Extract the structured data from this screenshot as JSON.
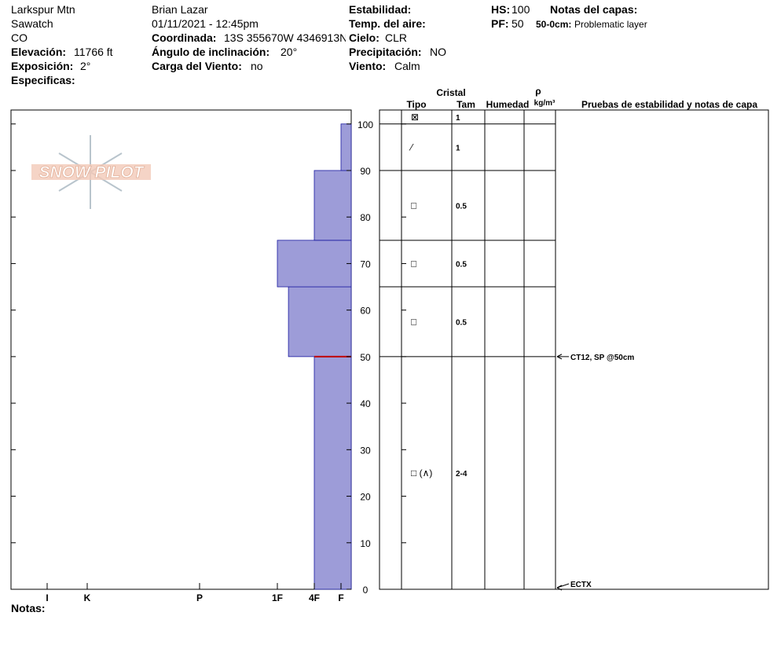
{
  "header": {
    "location": "Larkspur Mtn",
    "range": "Sawatch",
    "state": "CO",
    "elevation": {
      "label": "Elevación:",
      "value": "11766 ft"
    },
    "aspect": {
      "label": "Exposición:",
      "value": "2°"
    },
    "specifics": {
      "label": "Especificas:"
    },
    "observer": "Brian Lazar",
    "datetime": "01/11/2021 - 12:45pm",
    "coordinate": {
      "label": "Coordinada:",
      "value": "13S 355670W 4346913N"
    },
    "slope": {
      "label": "Ángulo de inclinación:",
      "value": "20°"
    },
    "wind_loading": {
      "label": "Carga del Viento:",
      "value": "no"
    },
    "stability": {
      "label": "Estabilidad:"
    },
    "air_temp": {
      "label": "Temp. del aire:"
    },
    "sky": {
      "label": "Cielo:",
      "value": "CLR"
    },
    "precip": {
      "label": "Precipitación:",
      "value": "NO"
    },
    "wind": {
      "label": "Viento:",
      "value": "Calm"
    },
    "hs": {
      "label": "HS:",
      "value": 100
    },
    "pf": {
      "label": "PF:",
      "value": 50
    },
    "layer_notes": {
      "label": "Notas del capas:",
      "items": [
        {
          "range": "50-0cm:",
          "text": "Problematic layer"
        }
      ]
    }
  },
  "watermark": "SNOW PILOT",
  "notes_label": "Notas:",
  "chart_data": {
    "type": "snow-profile",
    "ylim": [
      0,
      103
    ],
    "yticks": [
      0,
      10,
      20,
      30,
      40,
      50,
      60,
      70,
      80,
      90,
      100
    ],
    "xticks": [
      {
        "value": 6,
        "label": "I"
      },
      {
        "value": 5,
        "label": "K"
      },
      {
        "value": 4,
        "label": "P"
      },
      {
        "value": 3,
        "label": "1F"
      },
      {
        "value": 2,
        "label": "4F"
      },
      {
        "value": 1,
        "label": "F"
      }
    ],
    "color": "#9d9cd8",
    "columns": {
      "crystal": "Cristal",
      "type": "Tipo",
      "size": "Tam",
      "moisture": "Humedad",
      "density_symbol": "ρ",
      "density_unit": "kg/m³",
      "tests": "Pruebas de estabilidad y notas de capa"
    },
    "surface": {
      "crystal": "⊠",
      "size": "1"
    },
    "layers": [
      {
        "bottom": 0,
        "top": 50,
        "hardness": 2,
        "crystal": "□ (∧)",
        "size": "2-4"
      },
      {
        "bottom": 50,
        "top": 65,
        "hardness": 2.7,
        "crystal": "□",
        "size": "0.5"
      },
      {
        "bottom": 65,
        "top": 75,
        "hardness": 3,
        "crystal": "□",
        "size": "0.5"
      },
      {
        "bottom": 75,
        "top": 90,
        "hardness": 2,
        "crystal": "□",
        "size": "0.5"
      },
      {
        "bottom": 90,
        "top": 100,
        "hardness": 1,
        "crystal": "⁄",
        "size": "1"
      }
    ],
    "tests": [
      {
        "height": 50,
        "text": "CT12, SP @50cm"
      },
      {
        "height": 0,
        "text": "ECTX"
      }
    ]
  }
}
